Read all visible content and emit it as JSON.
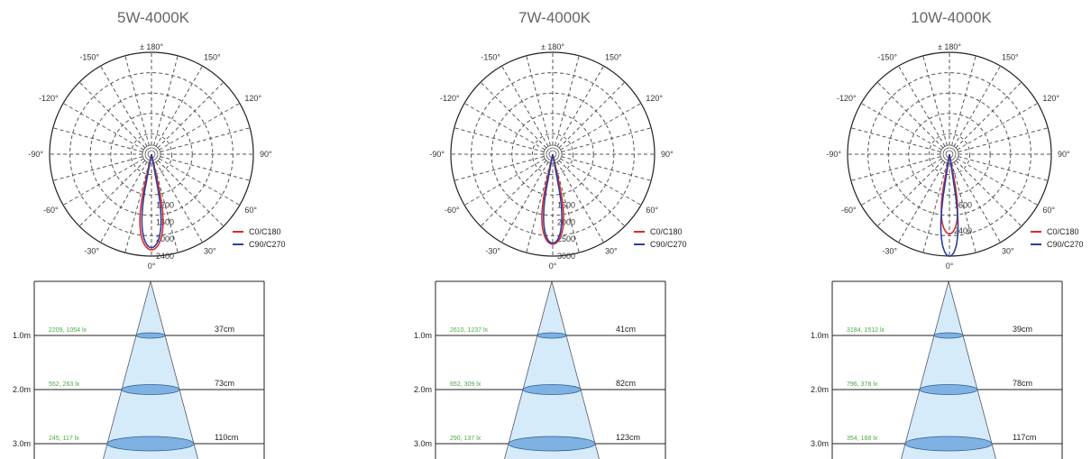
{
  "panels": [
    {
      "title": "5W-4000K",
      "polar_chart": {
        "type": "polar",
        "top_label": "± 180°",
        "angle_labels": [
          "0°",
          "30°",
          "60°",
          "90°",
          "120°",
          "150°",
          "-150°",
          "-120°",
          "-90°",
          "-60°",
          "-30°"
        ],
        "radial_ticks": [
          1200,
          1600,
          2000,
          2400
        ],
        "radial_max": 2400,
        "legend": [
          "C0/C180",
          "C90/C270"
        ],
        "series": [
          {
            "name": "C0/C180",
            "color": "#d92b2b",
            "peak": 2250,
            "half_angle": 13
          },
          {
            "name": "C90/C270",
            "color": "#2b3e9e",
            "peak": 2200,
            "half_angle": 11
          }
        ]
      },
      "beam_chart": {
        "type": "table",
        "distances": [
          "1.0m",
          "2.0m",
          "3.0m"
        ],
        "lux": [
          "2209, 1054 lx",
          "552, 263 lx",
          "245, 117 lx"
        ],
        "diameters": [
          "37cm",
          "73cm",
          "110cm"
        ],
        "diameter_values": [
          37,
          73,
          110
        ]
      }
    },
    {
      "title": "7W-4000K",
      "polar_chart": {
        "type": "polar",
        "top_label": "± 180°",
        "angle_labels": [
          "0°",
          "30°",
          "60°",
          "90°",
          "120°",
          "150°",
          "-150°",
          "-120°",
          "-90°",
          "-60°",
          "-30°"
        ],
        "radial_ticks": [
          1500,
          2000,
          2500,
          3000
        ],
        "radial_max": 3000,
        "legend": [
          "C0/C180",
          "C90/C270"
        ],
        "series": [
          {
            "name": "C0/C180",
            "color": "#d92b2b",
            "peak": 2650,
            "half_angle": 13
          },
          {
            "name": "C90/C270",
            "color": "#2b3e9e",
            "peak": 2620,
            "half_angle": 11
          }
        ]
      },
      "beam_chart": {
        "type": "table",
        "distances": [
          "1.0m",
          "2.0m",
          "3.0m"
        ],
        "lux": [
          "2610, 1237 lx",
          "652, 309 lx",
          "290, 137 lx"
        ],
        "diameters": [
          "41cm",
          "82cm",
          "123cm"
        ],
        "diameter_values": [
          41,
          82,
          123
        ]
      }
    },
    {
      "title": "10W-4000K",
      "polar_chart": {
        "type": "polar",
        "top_label": "± 180°",
        "angle_labels": [
          "0°",
          "30°",
          "60°",
          "90°",
          "120°",
          "150°",
          "-150°",
          "-120°",
          "-90°",
          "-60°",
          "-30°"
        ],
        "radial_ticks": [
          1600,
          2400
        ],
        "radial_max": 3200,
        "legend": [
          "C0/C180",
          "C90/C270"
        ],
        "series": [
          {
            "name": "C0/C180",
            "color": "#d92b2b",
            "peak": 2500,
            "half_angle": 11
          },
          {
            "name": "C90/C270",
            "color": "#2b3e9e",
            "peak": 3200,
            "half_angle": 9
          }
        ]
      },
      "beam_chart": {
        "type": "table",
        "distances": [
          "1.0m",
          "2.0m",
          "3.0m"
        ],
        "lux": [
          "3184, 1512 lx",
          "796, 378 lx",
          "354, 168 lx"
        ],
        "diameters": [
          "39cm",
          "78cm",
          "117cm"
        ],
        "diameter_values": [
          39,
          78,
          117
        ]
      }
    }
  ],
  "colors": {
    "grid": "#555555",
    "lux_text": "#4aa84a",
    "cone_fill": "#d6ebfa",
    "ellipse_fill": "#7fb2e2",
    "ellipse_stroke": "#2a5d94"
  }
}
